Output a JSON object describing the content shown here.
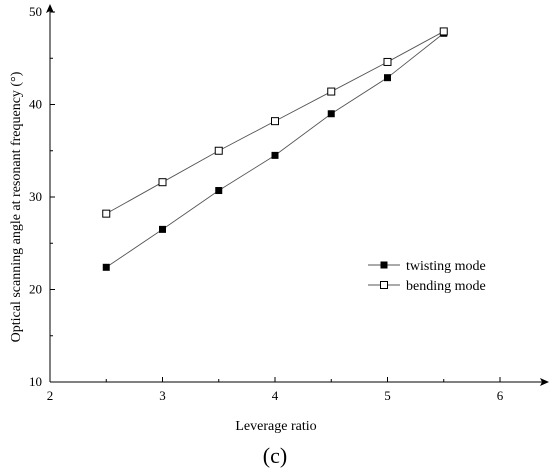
{
  "chart_data": {
    "type": "line",
    "xlabel": "Leverage ratio",
    "ylabel": "Optical scanning angle at resonant frequency (°)",
    "xlim": [
      2,
      6.4
    ],
    "ylim": [
      10,
      50
    ],
    "xticks": [
      "2",
      "3",
      "4",
      "5",
      "6"
    ],
    "yticks": [
      "10",
      "20",
      "30",
      "40",
      "50"
    ],
    "legend_position": "center-right",
    "grid": false,
    "series": [
      {
        "name": "twisting mode",
        "marker": "filled-square",
        "color": "#000000",
        "x": [
          2.5,
          3.0,
          3.5,
          4.0,
          4.5,
          5.0,
          5.5
        ],
        "y": [
          22.4,
          26.5,
          30.7,
          34.5,
          39.0,
          42.9,
          47.7
        ]
      },
      {
        "name": "bending mode",
        "marker": "open-square",
        "color": "#000000",
        "x": [
          2.5,
          3.0,
          3.5,
          4.0,
          4.5,
          5.0,
          5.5
        ],
        "y": [
          28.2,
          31.6,
          35.0,
          38.2,
          41.4,
          44.6,
          47.9
        ]
      }
    ],
    "panel_label": "(c)"
  }
}
